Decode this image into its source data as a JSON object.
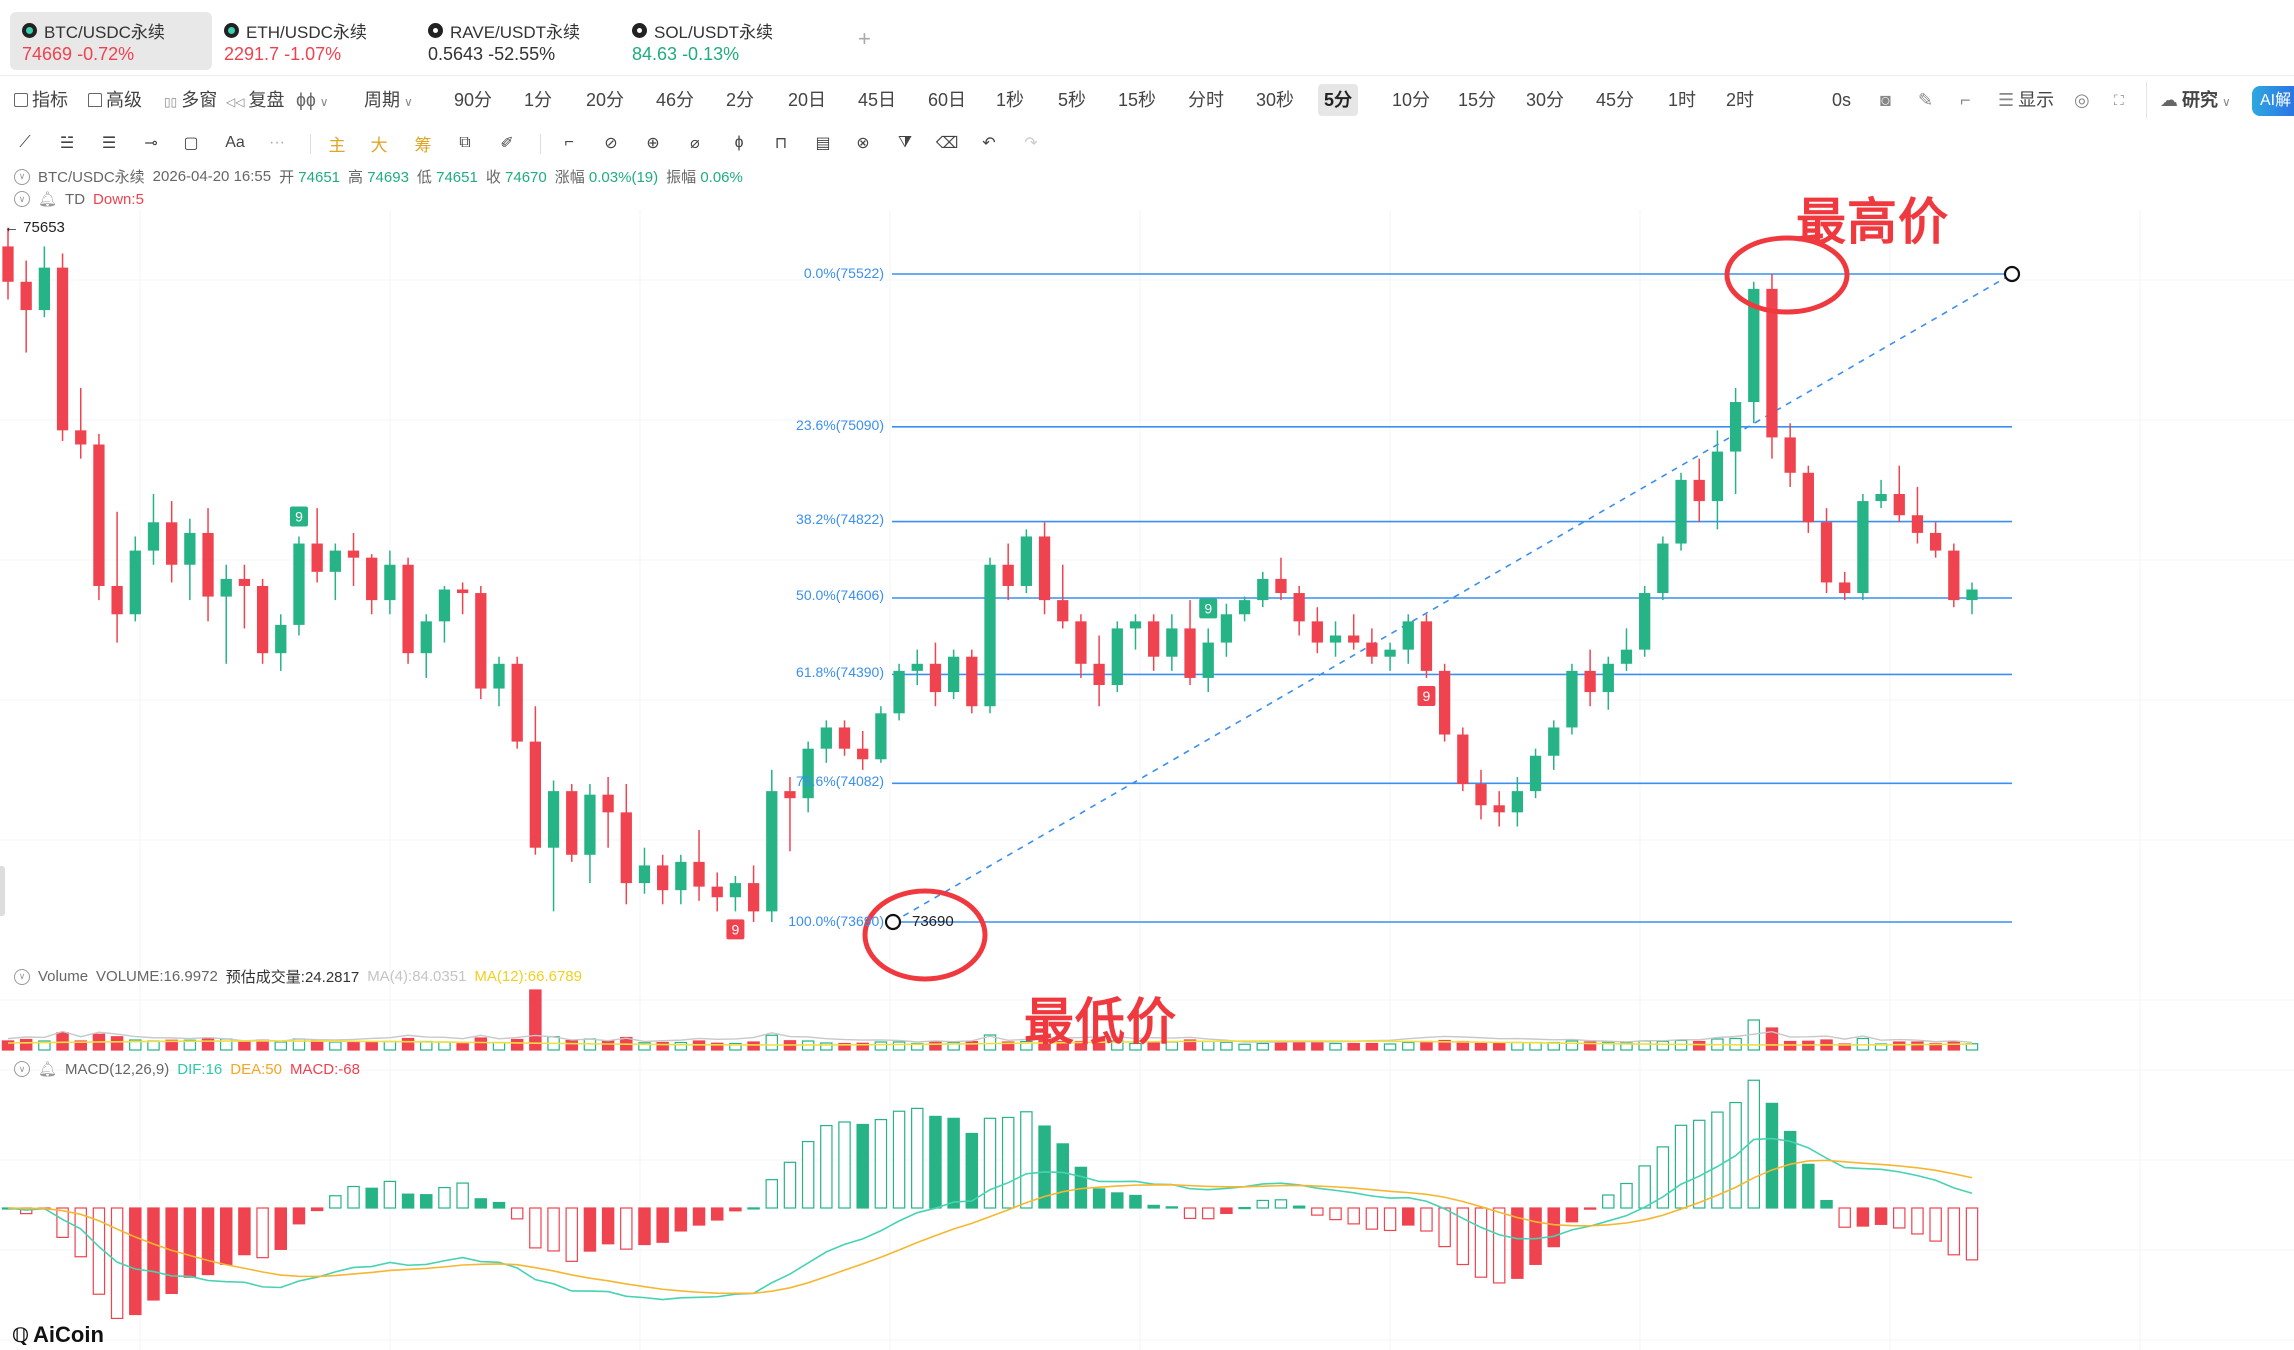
{
  "tabs": [
    {
      "symbol": "BTC/USDC永续",
      "price": "74669",
      "change": "-0.72%",
      "color": "red",
      "active": true,
      "icon": "coin-btc-icon"
    },
    {
      "symbol": "ETH/USDC永续",
      "price": "2291.7",
      "change": "-1.07%",
      "color": "red",
      "active": false,
      "icon": "coin-eth-icon"
    },
    {
      "symbol": "RAVE/USDT永续",
      "price": "0.5643",
      "change": "-52.55%",
      "color": "dark",
      "active": false,
      "icon": "coin-rave-icon"
    },
    {
      "symbol": "SOL/USDT永续",
      "price": "84.63",
      "change": "-0.13%",
      "color": "green",
      "active": false,
      "icon": "coin-sol-icon"
    }
  ],
  "tab_add_label": "+",
  "toolbar": {
    "indicators": "指标",
    "advanced": "高级",
    "multi_window": "多窗",
    "replay": "复盘",
    "period": "周期",
    "timeframes": [
      "90分",
      "1分",
      "20分",
      "46分",
      "2分",
      "20日",
      "45日",
      "60日",
      "1秒",
      "5秒",
      "15秒",
      "分时",
      "30秒",
      "5分",
      "10分",
      "15分",
      "30分",
      "45分",
      "1时",
      "2时"
    ],
    "active_timeframe": "5分",
    "countdown": "0s",
    "display": "显示",
    "research": "研究",
    "ai_button": "AI解"
  },
  "drawing_tools": [
    "trend-line",
    "parallel-channel",
    "horizontal-lines",
    "horizontal-ray",
    "rectangle",
    "text",
    "more",
    "main",
    "big",
    "chips",
    "snapshot",
    "brush",
    "bookmark",
    "ruler",
    "zoom-in",
    "magnet",
    "bars-pattern",
    "lock",
    "edit-list",
    "link",
    "filter",
    "trash",
    "undo",
    "redo"
  ],
  "drawing_tool_labels": {
    "text": "Aa",
    "more": "···",
    "main": "主",
    "big": "大",
    "chips": "筹"
  },
  "info_line": {
    "symbol": "BTC/USDC永续",
    "datetime": "2026-04-20 16:55",
    "open_label": "开",
    "open": "74651",
    "high_label": "高",
    "high": "74693",
    "low_label": "低",
    "low": "74651",
    "close_label": "收",
    "close": "74670",
    "change_label": "涨幅",
    "change": "0.03%(19)",
    "amplitude_label": "振幅",
    "amplitude": "0.06%"
  },
  "td_line": {
    "name": "TD",
    "value": "Down:5"
  },
  "max_price_tag": "← 75653",
  "fibonacci": {
    "levels": [
      {
        "label": "0.0%(75522)",
        "price": 75522
      },
      {
        "label": "23.6%(75090)",
        "price": 75090
      },
      {
        "label": "38.2%(74822)",
        "price": 74822
      },
      {
        "label": "50.0%(74606)",
        "price": 74606
      },
      {
        "label": "61.8%(74390)",
        "price": 74390
      },
      {
        "label": "78.6%(74082)",
        "price": 74082
      },
      {
        "label": "100.0%(73690)",
        "price": 73690
      }
    ],
    "anchor_low": "73690",
    "color": "#3a8ff0"
  },
  "annotations": {
    "high": "最高价",
    "low": "最低价",
    "color": "#f0393f"
  },
  "volume_panel": {
    "name": "Volume",
    "volume": "VOLUME:16.9972",
    "estimated": "预估成交量:24.2817",
    "ma4": "MA(4):84.0351",
    "ma12": "MA(12):66.6789"
  },
  "macd_panel": {
    "name": "MACD(12,26,9)",
    "dif": "DIF:16",
    "dea": "DEA:50",
    "macd": "MACD:-68"
  },
  "td_markers": [
    {
      "text": "9",
      "type": "up",
      "index": 16
    },
    {
      "text": "9",
      "type": "down",
      "index": 40
    },
    {
      "text": "9",
      "type": "up",
      "index": 66
    },
    {
      "text": "9",
      "type": "down",
      "index": 78
    }
  ],
  "logo": "AiCoin",
  "colors": {
    "up": "#26b386",
    "down": "#ef4350",
    "dif": "#47d2b3",
    "dea": "#f5b731",
    "ma4": "#c8c8c8",
    "ma12": "#f0e040"
  },
  "chart_data": {
    "type": "candlestick",
    "title": "BTC/USDC永续 5分",
    "price_range": [
      73600,
      75700
    ],
    "candles_ohlc": [
      [
        75600,
        75653,
        75450,
        75500
      ],
      [
        75500,
        75560,
        75300,
        75420
      ],
      [
        75420,
        75600,
        75400,
        75540
      ],
      [
        75540,
        75580,
        75050,
        75080
      ],
      [
        75080,
        75200,
        75000,
        75040
      ],
      [
        75040,
        75070,
        74600,
        74640
      ],
      [
        74640,
        74850,
        74480,
        74560
      ],
      [
        74560,
        74780,
        74540,
        74740
      ],
      [
        74740,
        74900,
        74700,
        74820
      ],
      [
        74820,
        74880,
        74650,
        74700
      ],
      [
        74700,
        74830,
        74600,
        74790
      ],
      [
        74790,
        74860,
        74540,
        74610
      ],
      [
        74610,
        74700,
        74420,
        74660
      ],
      [
        74660,
        74700,
        74520,
        74640
      ],
      [
        74640,
        74660,
        74420,
        74450
      ],
      [
        74450,
        74560,
        74400,
        74530
      ],
      [
        74530,
        74780,
        74500,
        74760
      ],
      [
        74760,
        74860,
        74650,
        74680
      ],
      [
        74680,
        74760,
        74600,
        74740
      ],
      [
        74740,
        74790,
        74640,
        74720
      ],
      [
        74720,
        74730,
        74560,
        74600
      ],
      [
        74600,
        74740,
        74560,
        74700
      ],
      [
        74700,
        74720,
        74420,
        74450
      ],
      [
        74450,
        74560,
        74380,
        74540
      ],
      [
        74540,
        74640,
        74480,
        74630
      ],
      [
        74630,
        74650,
        74560,
        74620
      ],
      [
        74620,
        74640,
        74320,
        74350
      ],
      [
        74350,
        74440,
        74300,
        74420
      ],
      [
        74420,
        74440,
        74180,
        74200
      ],
      [
        74200,
        74300,
        73880,
        73900
      ],
      [
        73900,
        74090,
        73720,
        74060
      ],
      [
        74060,
        74080,
        73860,
        73880
      ],
      [
        73880,
        74080,
        73800,
        74050
      ],
      [
        74050,
        74100,
        73900,
        74000
      ],
      [
        74000,
        74080,
        73740,
        73800
      ],
      [
        73800,
        73900,
        73770,
        73850
      ],
      [
        73850,
        73880,
        73740,
        73780
      ],
      [
        73780,
        73880,
        73740,
        73860
      ],
      [
        73860,
        73950,
        73750,
        73790
      ],
      [
        73790,
        73830,
        73720,
        73760
      ],
      [
        73760,
        73820,
        73720,
        73800
      ],
      [
        73800,
        73850,
        73690,
        73720
      ],
      [
        73720,
        74120,
        73690,
        74060
      ],
      [
        74060,
        74100,
        73890,
        74040
      ],
      [
        74040,
        74200,
        74000,
        74180
      ],
      [
        74180,
        74260,
        74140,
        74240
      ],
      [
        74240,
        74260,
        74160,
        74180
      ],
      [
        74180,
        74230,
        74120,
        74150
      ],
      [
        74150,
        74300,
        74140,
        74280
      ],
      [
        74280,
        74420,
        74260,
        74400
      ],
      [
        74400,
        74460,
        74360,
        74420
      ],
      [
        74420,
        74480,
        74300,
        74340
      ],
      [
        74340,
        74460,
        74320,
        74440
      ],
      [
        74440,
        74460,
        74280,
        74300
      ],
      [
        74300,
        74720,
        74280,
        74700
      ],
      [
        74700,
        74760,
        74600,
        74640
      ],
      [
        74640,
        74800,
        74620,
        74780
      ],
      [
        74780,
        74820,
        74560,
        74600
      ],
      [
        74600,
        74700,
        74520,
        74540
      ],
      [
        74540,
        74560,
        74380,
        74420
      ],
      [
        74420,
        74500,
        74300,
        74360
      ],
      [
        74360,
        74540,
        74340,
        74520
      ],
      [
        74520,
        74560,
        74460,
        74540
      ],
      [
        74540,
        74560,
        74400,
        74440
      ],
      [
        74440,
        74560,
        74400,
        74520
      ],
      [
        74520,
        74600,
        74360,
        74380
      ],
      [
        74380,
        74520,
        74340,
        74480
      ],
      [
        74480,
        74590,
        74440,
        74560
      ],
      [
        74560,
        74610,
        74540,
        74600
      ],
      [
        74600,
        74680,
        74580,
        74660
      ],
      [
        74660,
        74720,
        74600,
        74620
      ],
      [
        74620,
        74640,
        74500,
        74540
      ],
      [
        74540,
        74580,
        74450,
        74480
      ],
      [
        74480,
        74540,
        74440,
        74500
      ],
      [
        74500,
        74560,
        74460,
        74480
      ],
      [
        74480,
        74520,
        74420,
        74440
      ],
      [
        74440,
        74480,
        74400,
        74460
      ],
      [
        74460,
        74560,
        74420,
        74540
      ],
      [
        74540,
        74560,
        74380,
        74400
      ],
      [
        74400,
        74420,
        74200,
        74220
      ],
      [
        74220,
        74240,
        74060,
        74080
      ],
      [
        74080,
        74120,
        73980,
        74020
      ],
      [
        74020,
        74060,
        73960,
        74000
      ],
      [
        74000,
        74100,
        73960,
        74060
      ],
      [
        74060,
        74180,
        74040,
        74160
      ],
      [
        74160,
        74260,
        74120,
        74240
      ],
      [
        74240,
        74420,
        74220,
        74400
      ],
      [
        74400,
        74460,
        74300,
        74340
      ],
      [
        74340,
        74440,
        74290,
        74420
      ],
      [
        74420,
        74520,
        74400,
        74460
      ],
      [
        74460,
        74640,
        74440,
        74620
      ],
      [
        74620,
        74780,
        74600,
        74760
      ],
      [
        74760,
        74960,
        74740,
        74940
      ],
      [
        74940,
        75000,
        74820,
        74880
      ],
      [
        74880,
        75080,
        74800,
        75020
      ],
      [
        75020,
        75200,
        74900,
        75160
      ],
      [
        75160,
        75500,
        75100,
        75480
      ],
      [
        75480,
        75522,
        75000,
        75060
      ],
      [
        75060,
        75100,
        74920,
        74960
      ],
      [
        74960,
        74980,
        74790,
        74820
      ],
      [
        74820,
        74860,
        74620,
        74650
      ],
      [
        74650,
        74680,
        74600,
        74620
      ],
      [
        74620,
        74900,
        74600,
        74880
      ],
      [
        74880,
        74940,
        74860,
        74900
      ],
      [
        74900,
        74980,
        74820,
        74840
      ],
      [
        74840,
        74920,
        74760,
        74790
      ],
      [
        74790,
        74820,
        74720,
        74740
      ],
      [
        74740,
        74760,
        74580,
        74600
      ],
      [
        74600,
        74650,
        74560,
        74630
      ]
    ],
    "volume": [],
    "macd": {
      "note": "DIF, DEA lines and MACD histogram oscillating around zero; final DIF 16, DEA 50, MACD -68"
    }
  }
}
